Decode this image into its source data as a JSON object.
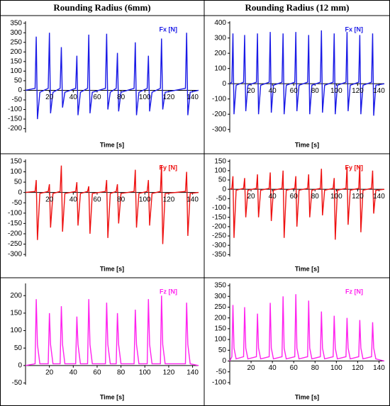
{
  "columns": [
    "Rounding Radius (6mm)",
    "Rounding Radius (12 mm)"
  ],
  "chart_data": [
    {
      "type": "line",
      "x_label": "Time [s]",
      "xlim": [
        0,
        145
      ],
      "xticks": [
        20,
        40,
        60,
        80,
        100,
        120,
        140
      ],
      "ylim": [
        -220,
        360
      ],
      "yticks": [
        350,
        300,
        250,
        200,
        150,
        100,
        50,
        0,
        -50,
        -100,
        -150,
        -200
      ],
      "x": [
        0,
        8,
        9,
        10,
        12,
        19,
        20,
        21,
        23,
        29,
        30,
        31,
        33,
        42,
        43,
        44,
        46,
        52,
        53,
        54,
        56,
        67,
        68,
        69,
        71,
        76,
        77,
        78,
        80,
        91,
        92,
        93,
        95,
        102,
        103,
        104,
        106,
        113,
        114,
        115,
        117,
        134,
        135,
        136,
        138,
        145
      ],
      "series": [
        {
          "name": "Fx [N]",
          "color": "#1a1ae6",
          "values": [
            0,
            10,
            280,
            -150,
            -10,
            10,
            300,
            -120,
            -10,
            10,
            225,
            -90,
            -10,
            10,
            180,
            -130,
            -10,
            10,
            290,
            -120,
            -10,
            10,
            295,
            -100,
            -10,
            10,
            195,
            -110,
            -10,
            10,
            250,
            -130,
            -10,
            10,
            180,
            -110,
            -10,
            10,
            270,
            -100,
            -10,
            10,
            300,
            -130,
            -10,
            0
          ]
        }
      ]
    },
    {
      "type": "line",
      "x_label": "Time [s]",
      "xlim": [
        0,
        145
      ],
      "xticks": [
        20,
        40,
        60,
        80,
        100,
        120,
        140
      ],
      "ylim": [
        -320,
        410
      ],
      "yticks": [
        400,
        300,
        200,
        100,
        0,
        -100,
        -200,
        -300
      ],
      "x": [
        0,
        2,
        3,
        4,
        6,
        13,
        14,
        15,
        17,
        25,
        26,
        27,
        29,
        37,
        38,
        39,
        41,
        49,
        50,
        51,
        53,
        61,
        62,
        63,
        65,
        73,
        74,
        75,
        77,
        85,
        86,
        87,
        89,
        97,
        98,
        99,
        101,
        109,
        110,
        111,
        113,
        121,
        122,
        123,
        125,
        133,
        134,
        135,
        137,
        145
      ],
      "series": [
        {
          "name": "Fx [N]",
          "color": "#1a1ae6",
          "values": [
            0,
            10,
            330,
            -200,
            -10,
            10,
            320,
            -180,
            -10,
            10,
            330,
            -200,
            -10,
            10,
            340,
            -190,
            -10,
            10,
            330,
            -200,
            -10,
            10,
            340,
            -180,
            -10,
            10,
            320,
            -200,
            -10,
            10,
            350,
            -190,
            -10,
            10,
            330,
            -200,
            -10,
            10,
            340,
            -180,
            -10,
            10,
            320,
            -200,
            -10,
            10,
            330,
            -210,
            -10,
            0
          ]
        }
      ]
    },
    {
      "type": "line",
      "x_label": "Time [s]",
      "xlim": [
        0,
        145
      ],
      "xticks": [
        20,
        40,
        60,
        80,
        100,
        120,
        140
      ],
      "ylim": [
        -310,
        160
      ],
      "yticks": [
        150,
        100,
        50,
        0,
        -50,
        -100,
        -150,
        -200,
        -250,
        -300
      ],
      "x": [
        0,
        8,
        9,
        10,
        12,
        19,
        20,
        21,
        23,
        29,
        30,
        31,
        33,
        42,
        43,
        44,
        46,
        52,
        53,
        54,
        56,
        67,
        68,
        69,
        71,
        76,
        77,
        78,
        80,
        91,
        92,
        93,
        95,
        102,
        103,
        104,
        106,
        113,
        114,
        115,
        117,
        134,
        135,
        136,
        138,
        145
      ],
      "series": [
        {
          "name": "Fy [N]",
          "color": "#ee1111",
          "values": [
            0,
            5,
            60,
            -230,
            -5,
            5,
            40,
            -170,
            -5,
            5,
            130,
            -190,
            -5,
            5,
            50,
            -160,
            -5,
            5,
            30,
            -200,
            -5,
            5,
            60,
            -220,
            -5,
            5,
            40,
            -150,
            -5,
            5,
            110,
            -170,
            -5,
            5,
            60,
            -160,
            -5,
            5,
            130,
            -250,
            -5,
            5,
            100,
            -210,
            -5,
            0
          ]
        }
      ]
    },
    {
      "type": "line",
      "x_label": "Time [s]",
      "xlim": [
        0,
        145
      ],
      "xticks": [
        20,
        40,
        60,
        80,
        100,
        120,
        140
      ],
      "ylim": [
        -360,
        160
      ],
      "yticks": [
        150,
        100,
        50,
        0,
        -50,
        -100,
        -150,
        -200,
        -250,
        -300,
        -350
      ],
      "x": [
        0,
        2,
        3,
        4,
        6,
        13,
        14,
        15,
        17,
        25,
        26,
        27,
        29,
        37,
        38,
        39,
        41,
        49,
        50,
        51,
        53,
        61,
        62,
        63,
        65,
        73,
        74,
        75,
        77,
        85,
        86,
        87,
        89,
        97,
        98,
        99,
        101,
        109,
        110,
        111,
        113,
        121,
        122,
        123,
        125,
        133,
        134,
        135,
        137,
        145
      ],
      "series": [
        {
          "name": "Fy [N]",
          "color": "#ee1111",
          "values": [
            0,
            5,
            70,
            -260,
            -5,
            5,
            60,
            -150,
            -5,
            5,
            80,
            -150,
            -5,
            5,
            90,
            -170,
            -5,
            5,
            100,
            -260,
            -5,
            5,
            70,
            -200,
            -5,
            5,
            80,
            -150,
            -5,
            5,
            110,
            -140,
            -5,
            5,
            60,
            -270,
            -5,
            5,
            120,
            -190,
            -5,
            5,
            130,
            -230,
            -5,
            5,
            100,
            -130,
            -5,
            0
          ]
        }
      ]
    },
    {
      "type": "line",
      "x_label": "Time [s]",
      "xlim": [
        0,
        145
      ],
      "xticks": [
        20,
        40,
        60,
        80,
        100,
        120,
        140
      ],
      "ylim": [
        -55,
        235
      ],
      "yticks": [
        200,
        150,
        100,
        50,
        0,
        -50
      ],
      "x": [
        0,
        8,
        9,
        10,
        12,
        19,
        20,
        21,
        23,
        29,
        30,
        31,
        33,
        42,
        43,
        44,
        46,
        52,
        53,
        54,
        56,
        67,
        68,
        69,
        71,
        76,
        77,
        78,
        80,
        91,
        92,
        93,
        95,
        102,
        103,
        104,
        106,
        113,
        114,
        115,
        117,
        134,
        135,
        136,
        138,
        145
      ],
      "series": [
        {
          "name": "Fz [N]",
          "color": "#ff22ee",
          "values": [
            0,
            5,
            190,
            60,
            5,
            5,
            150,
            60,
            5,
            5,
            170,
            60,
            5,
            5,
            140,
            60,
            5,
            5,
            190,
            60,
            5,
            5,
            180,
            60,
            5,
            5,
            150,
            60,
            5,
            5,
            160,
            60,
            5,
            5,
            190,
            60,
            5,
            5,
            200,
            60,
            5,
            5,
            180,
            60,
            5,
            0
          ]
        }
      ]
    },
    {
      "type": "line",
      "x_label": "Time [s]",
      "xlim": [
        0,
        145
      ],
      "xticks": [
        20,
        40,
        60,
        80,
        100,
        120,
        140
      ],
      "ylim": [
        -110,
        360
      ],
      "yticks": [
        350,
        300,
        250,
        200,
        150,
        100,
        50,
        0,
        -50,
        -100
      ],
      "x": [
        0,
        2,
        3,
        4,
        6,
        13,
        14,
        15,
        17,
        25,
        26,
        27,
        29,
        37,
        38,
        39,
        41,
        49,
        50,
        51,
        53,
        61,
        62,
        63,
        65,
        73,
        74,
        75,
        77,
        85,
        86,
        87,
        89,
        97,
        98,
        99,
        101,
        109,
        110,
        111,
        113,
        121,
        122,
        123,
        125,
        133,
        134,
        135,
        137,
        145
      ],
      "series": [
        {
          "name": "Fz [N]",
          "color": "#ff22ee",
          "values": [
            0,
            20,
            260,
            60,
            10,
            20,
            250,
            60,
            10,
            20,
            220,
            60,
            10,
            20,
            270,
            60,
            10,
            20,
            300,
            60,
            10,
            20,
            310,
            60,
            10,
            20,
            280,
            60,
            10,
            20,
            230,
            60,
            10,
            20,
            210,
            60,
            10,
            20,
            200,
            60,
            10,
            20,
            190,
            60,
            10,
            20,
            180,
            60,
            10,
            0
          ]
        }
      ]
    }
  ]
}
